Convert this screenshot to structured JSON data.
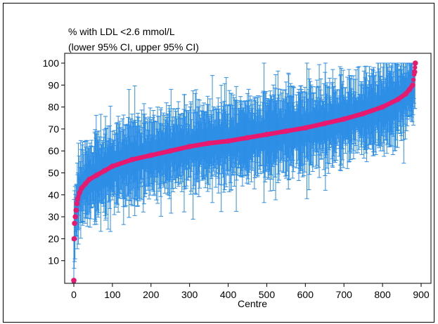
{
  "chart_data": {
    "type": "scatter",
    "title_lines": [
      "% with LDL <2.6 mmol/L",
      "(lower 95% CI, upper 95% CI)"
    ],
    "xlabel": "Centre",
    "ylabel": "",
    "xlim": [
      -5,
      900
    ],
    "ylim": [
      0,
      102
    ],
    "xticks": [
      0,
      100,
      200,
      300,
      400,
      500,
      600,
      700,
      800,
      900
    ],
    "yticks": [
      10,
      20,
      30,
      40,
      50,
      60,
      70,
      80,
      90,
      100
    ],
    "grid": false,
    "legend": "none",
    "n_centres": 885,
    "series": [
      {
        "role": "point estimate (sorted ascending)",
        "color": "#e8196e",
        "x": [
          0,
          1,
          2,
          4,
          6,
          8,
          10,
          15,
          20,
          30,
          40,
          60,
          80,
          100,
          150,
          200,
          250,
          300,
          350,
          400,
          450,
          500,
          550,
          600,
          650,
          700,
          750,
          800,
          840,
          860,
          870,
          878,
          883,
          885
        ],
        "values": [
          1,
          20,
          27,
          30,
          33,
          36,
          38,
          41,
          43,
          45,
          47,
          49,
          51,
          53,
          56,
          58,
          60,
          62,
          63.5,
          64.5,
          66,
          67.5,
          69,
          70.5,
          72.5,
          74.5,
          77,
          80,
          83.5,
          86,
          88,
          90,
          96,
          100
        ]
      },
      {
        "role": "95% CI error bars",
        "color": "#2e8fe6",
        "lower_95_ci_approx": [
          0,
          5,
          10,
          13,
          15,
          20,
          25,
          30,
          35,
          38,
          40,
          43,
          45,
          48,
          52,
          57,
          63,
          70,
          75
        ],
        "upper_95_ci_approx": [
          10,
          45,
          55,
          60,
          63,
          66,
          68,
          70,
          73,
          75,
          77,
          79,
          81,
          84,
          87,
          90,
          94,
          97,
          99
        ]
      }
    ]
  }
}
